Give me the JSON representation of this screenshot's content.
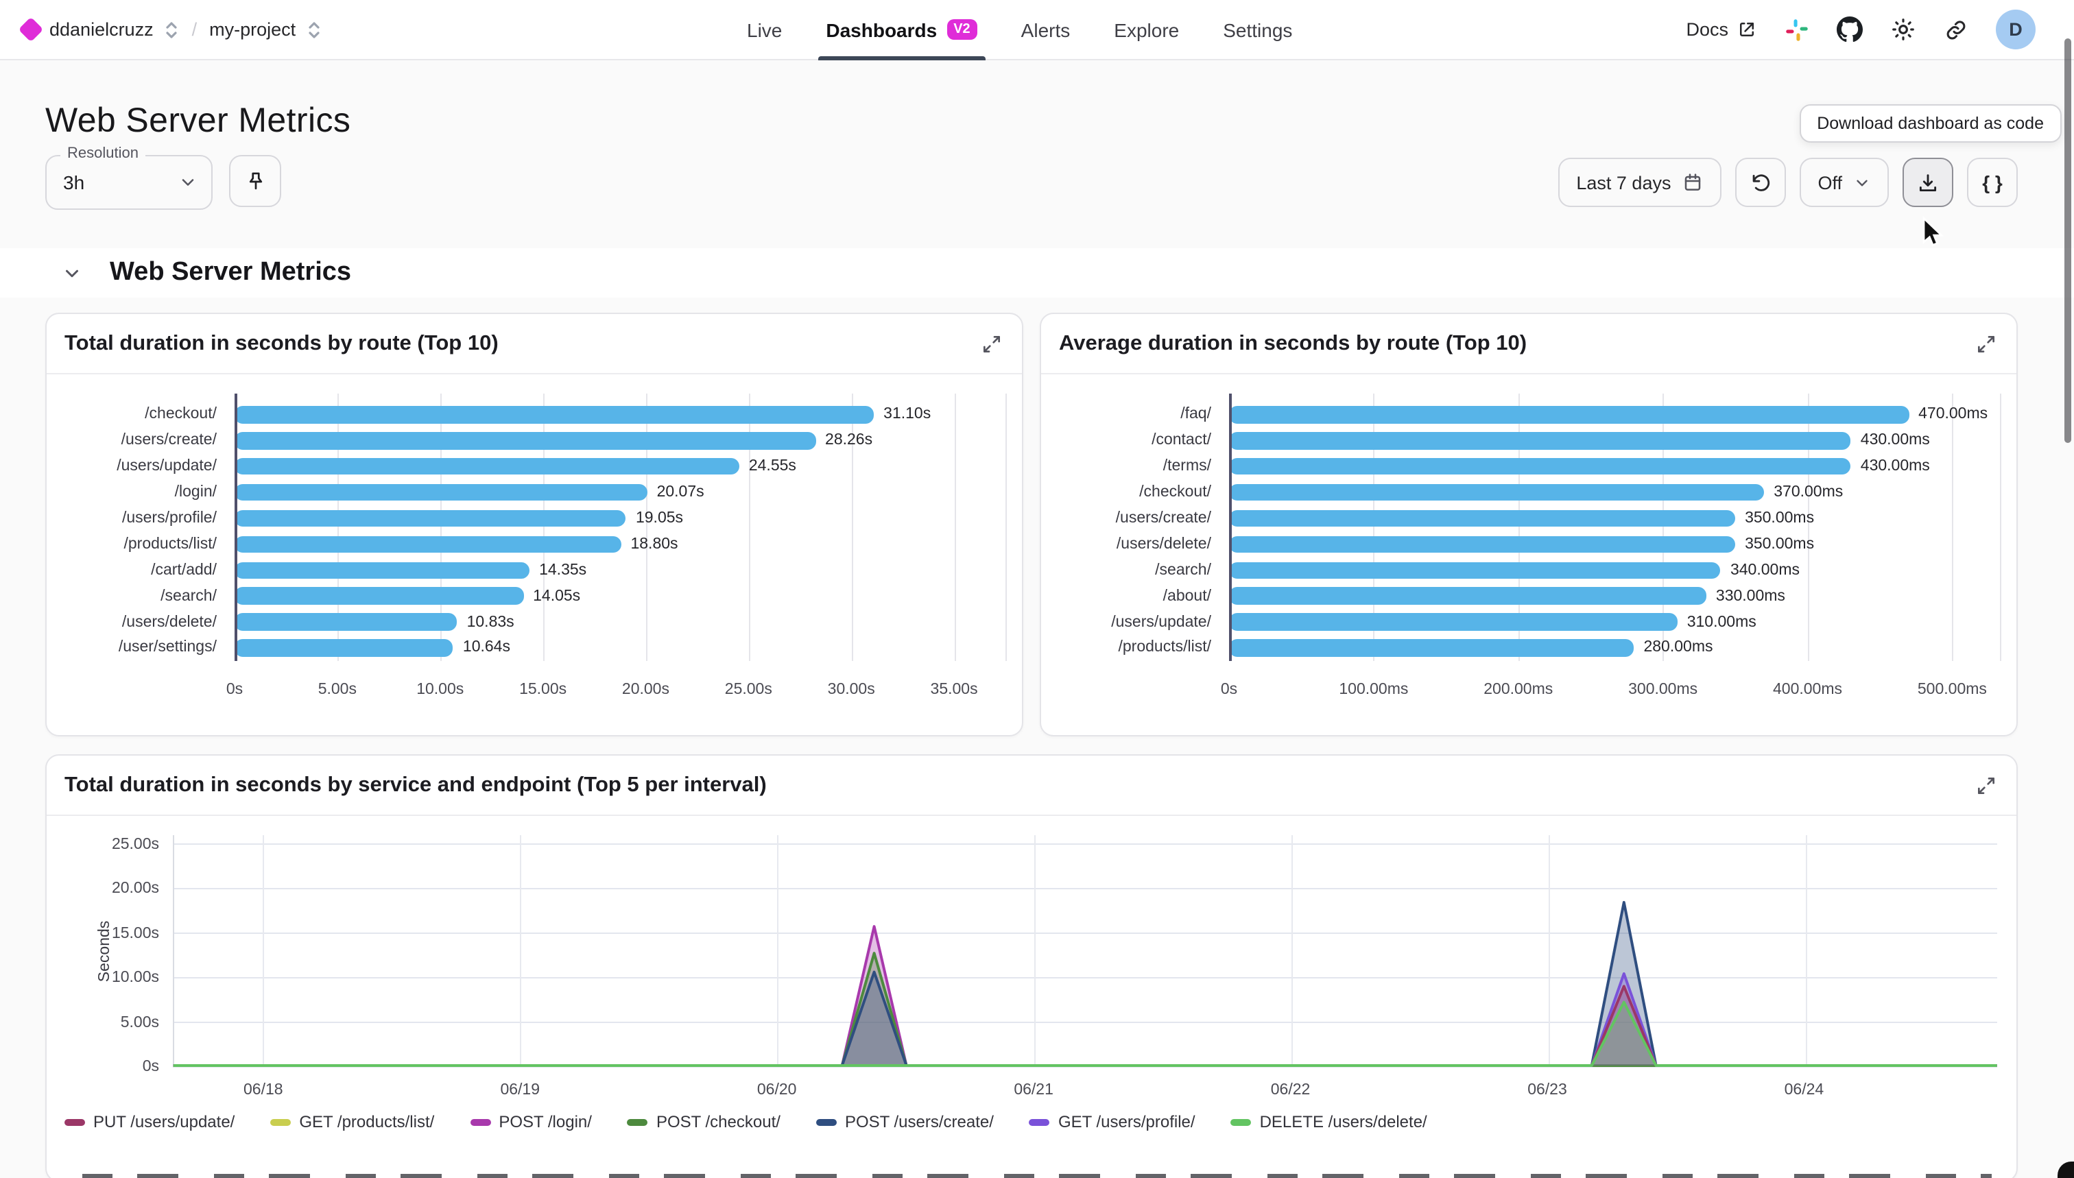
{
  "header": {
    "breadcrumb": {
      "org": "ddanielcruzz",
      "separator": "/",
      "project": "my-project"
    },
    "tabs": [
      {
        "label": "Live",
        "active": false
      },
      {
        "label": "Dashboards",
        "active": true,
        "badge": "V2"
      },
      {
        "label": "Alerts",
        "active": false
      },
      {
        "label": "Explore",
        "active": false
      },
      {
        "label": "Settings",
        "active": false
      }
    ],
    "docs_label": "Docs",
    "avatar_initial": "D"
  },
  "page": {
    "title": "Web Server Metrics"
  },
  "controls": {
    "resolution_label": "Resolution",
    "resolution_value": "3h",
    "time_range_label": "Last 7 days",
    "auto_refresh_value": "Off",
    "braces_label": "{ }",
    "tooltip": "Download dashboard as code"
  },
  "section": {
    "title": "Web Server Metrics"
  },
  "colors": {
    "brand_magenta": "#df2cd8",
    "active_tab_underline": "#3d4757",
    "bar_blue": "#57b4e8",
    "avatar_blue": "#a5cbf2"
  },
  "chart_data": [
    {
      "type": "bar",
      "orientation": "horizontal",
      "title": "Total duration in seconds by route (Top 10)",
      "categories": [
        "/checkout/",
        "/users/create/",
        "/users/update/",
        "/login/",
        "/users/profile/",
        "/products/list/",
        "/cart/add/",
        "/search/",
        "/users/delete/",
        "/user/settings/"
      ],
      "values": [
        31.1,
        28.26,
        24.55,
        20.07,
        19.05,
        18.8,
        14.35,
        14.05,
        10.83,
        10.64
      ],
      "value_labels": [
        "31.10s",
        "28.26s",
        "24.55s",
        "20.07s",
        "19.05s",
        "18.80s",
        "14.35s",
        "14.05s",
        "10.83s",
        "10.64s"
      ],
      "x_ticks": [
        "0s",
        "5.00s",
        "10.00s",
        "15.00s",
        "20.00s",
        "25.00s",
        "30.00s",
        "35.00s"
      ],
      "tick_positions": [
        0,
        5,
        10,
        15,
        20,
        25,
        30,
        35
      ],
      "x_max": 37.5,
      "bar_color": "#57b4e8",
      "grid": true
    },
    {
      "type": "bar",
      "orientation": "horizontal",
      "title": "Average duration in seconds by route (Top 10)",
      "categories": [
        "/faq/",
        "/contact/",
        "/terms/",
        "/checkout/",
        "/users/create/",
        "/users/delete/",
        "/search/",
        "/about/",
        "/users/update/",
        "/products/list/"
      ],
      "values": [
        470,
        430,
        430,
        370,
        350,
        350,
        340,
        330,
        310,
        280
      ],
      "value_labels": [
        "470.00ms",
        "430.00ms",
        "430.00ms",
        "370.00ms",
        "350.00ms",
        "350.00ms",
        "340.00ms",
        "330.00ms",
        "310.00ms",
        "280.00ms"
      ],
      "x_ticks": [
        "0s",
        "100.00ms",
        "200.00ms",
        "300.00ms",
        "400.00ms",
        "500.00ms"
      ],
      "tick_positions": [
        0,
        100,
        200,
        300,
        400,
        500
      ],
      "x_max": 533,
      "bar_color": "#57b4e8",
      "grid": true
    },
    {
      "type": "area",
      "title": "Total duration in seconds by service and endpoint (Top 5 per interval)",
      "ylabel": "Seconds",
      "y_ticks": [
        "0s",
        "5.00s",
        "10.00s",
        "15.00s",
        "20.00s",
        "25.00s"
      ],
      "y_tick_values": [
        0,
        5,
        10,
        15,
        20,
        25
      ],
      "y_max": 26.0,
      "x_ticks": [
        "06/18",
        "06/19",
        "06/20",
        "06/21",
        "06/22",
        "06/23",
        "06/24"
      ],
      "x_domain_days": [
        -0.35,
        6.74
      ],
      "legend": [
        "PUT /users/update/",
        "GET /products/list/",
        "POST /login/",
        "POST /checkout/",
        "POST /users/create/",
        "GET /users/profile/",
        "DELETE /users/delete/"
      ],
      "series": [
        {
          "name": "GET /products/list/",
          "color": "#c9ce4f",
          "points": []
        },
        {
          "name": "POST /login/",
          "color": "#a839ac",
          "points": [
            [
              2.25,
              0
            ],
            [
              2.375,
              15.6
            ],
            [
              2.5,
              0
            ]
          ]
        },
        {
          "name": "POST /checkout/",
          "color": "#4d8a3e",
          "points": [
            [
              2.25,
              0
            ],
            [
              2.375,
              12.6
            ],
            [
              2.5,
              0
            ]
          ]
        },
        {
          "name": "POST /users/create/",
          "color": "#2f4e80",
          "points": [
            [
              2.25,
              0
            ],
            [
              2.375,
              10.5
            ],
            [
              2.5,
              0
            ],
            [
              5.165,
              0
            ],
            [
              5.29,
              18.3
            ],
            [
              5.415,
              0
            ]
          ]
        },
        {
          "name": "GET /users/profile/",
          "color": "#7a52d9",
          "points": [
            [
              5.165,
              0
            ],
            [
              5.29,
              10.3
            ],
            [
              5.415,
              0
            ]
          ]
        },
        {
          "name": "PUT /users/update/",
          "color": "#9b3767",
          "points": [
            [
              5.165,
              0
            ],
            [
              5.29,
              8.9
            ],
            [
              5.415,
              0
            ]
          ]
        },
        {
          "name": "DELETE /users/delete/",
          "color": "#63c462",
          "points": [
            [
              5.165,
              0
            ],
            [
              5.29,
              7.1
            ],
            [
              5.415,
              0
            ]
          ]
        }
      ],
      "grid": true,
      "legend_position": "bottom"
    }
  ]
}
